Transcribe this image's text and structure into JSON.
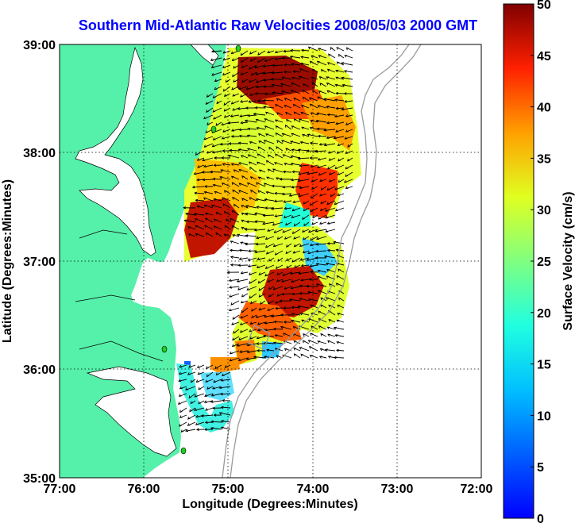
{
  "title": "Southern Mid-Atlantic Raw Velocities 2008/05/03 2000 GMT",
  "xlabel": "Longitude (Degrees:Minutes)",
  "ylabel": "Latitude (Degrees:Minutes)",
  "colorbar_label": "Surface Velocity (cm/s)",
  "x_ticks": [
    "77:00",
    "76:00",
    "75:00",
    "74:00",
    "73:00",
    "72:00"
  ],
  "y_ticks": [
    "39:00",
    "38:00",
    "37:00",
    "36:00",
    "35:00"
  ],
  "colorbar_ticks": [
    "50",
    "45",
    "40",
    "35",
    "30",
    "25",
    "20",
    "15",
    "10",
    "5",
    "0"
  ],
  "colors": {
    "land": "#55f0aa",
    "water": "#ffffff",
    "title": "#0000ff",
    "grid": "#000000",
    "bathymetry": "#9a9a9a",
    "station": "#22cc22"
  },
  "map": {
    "lon_range": [
      -77,
      -72
    ],
    "lat_range": [
      35,
      39
    ],
    "velocity_range_cm_s": [
      0,
      50
    ],
    "colormap": "jet",
    "grid": true
  }
}
